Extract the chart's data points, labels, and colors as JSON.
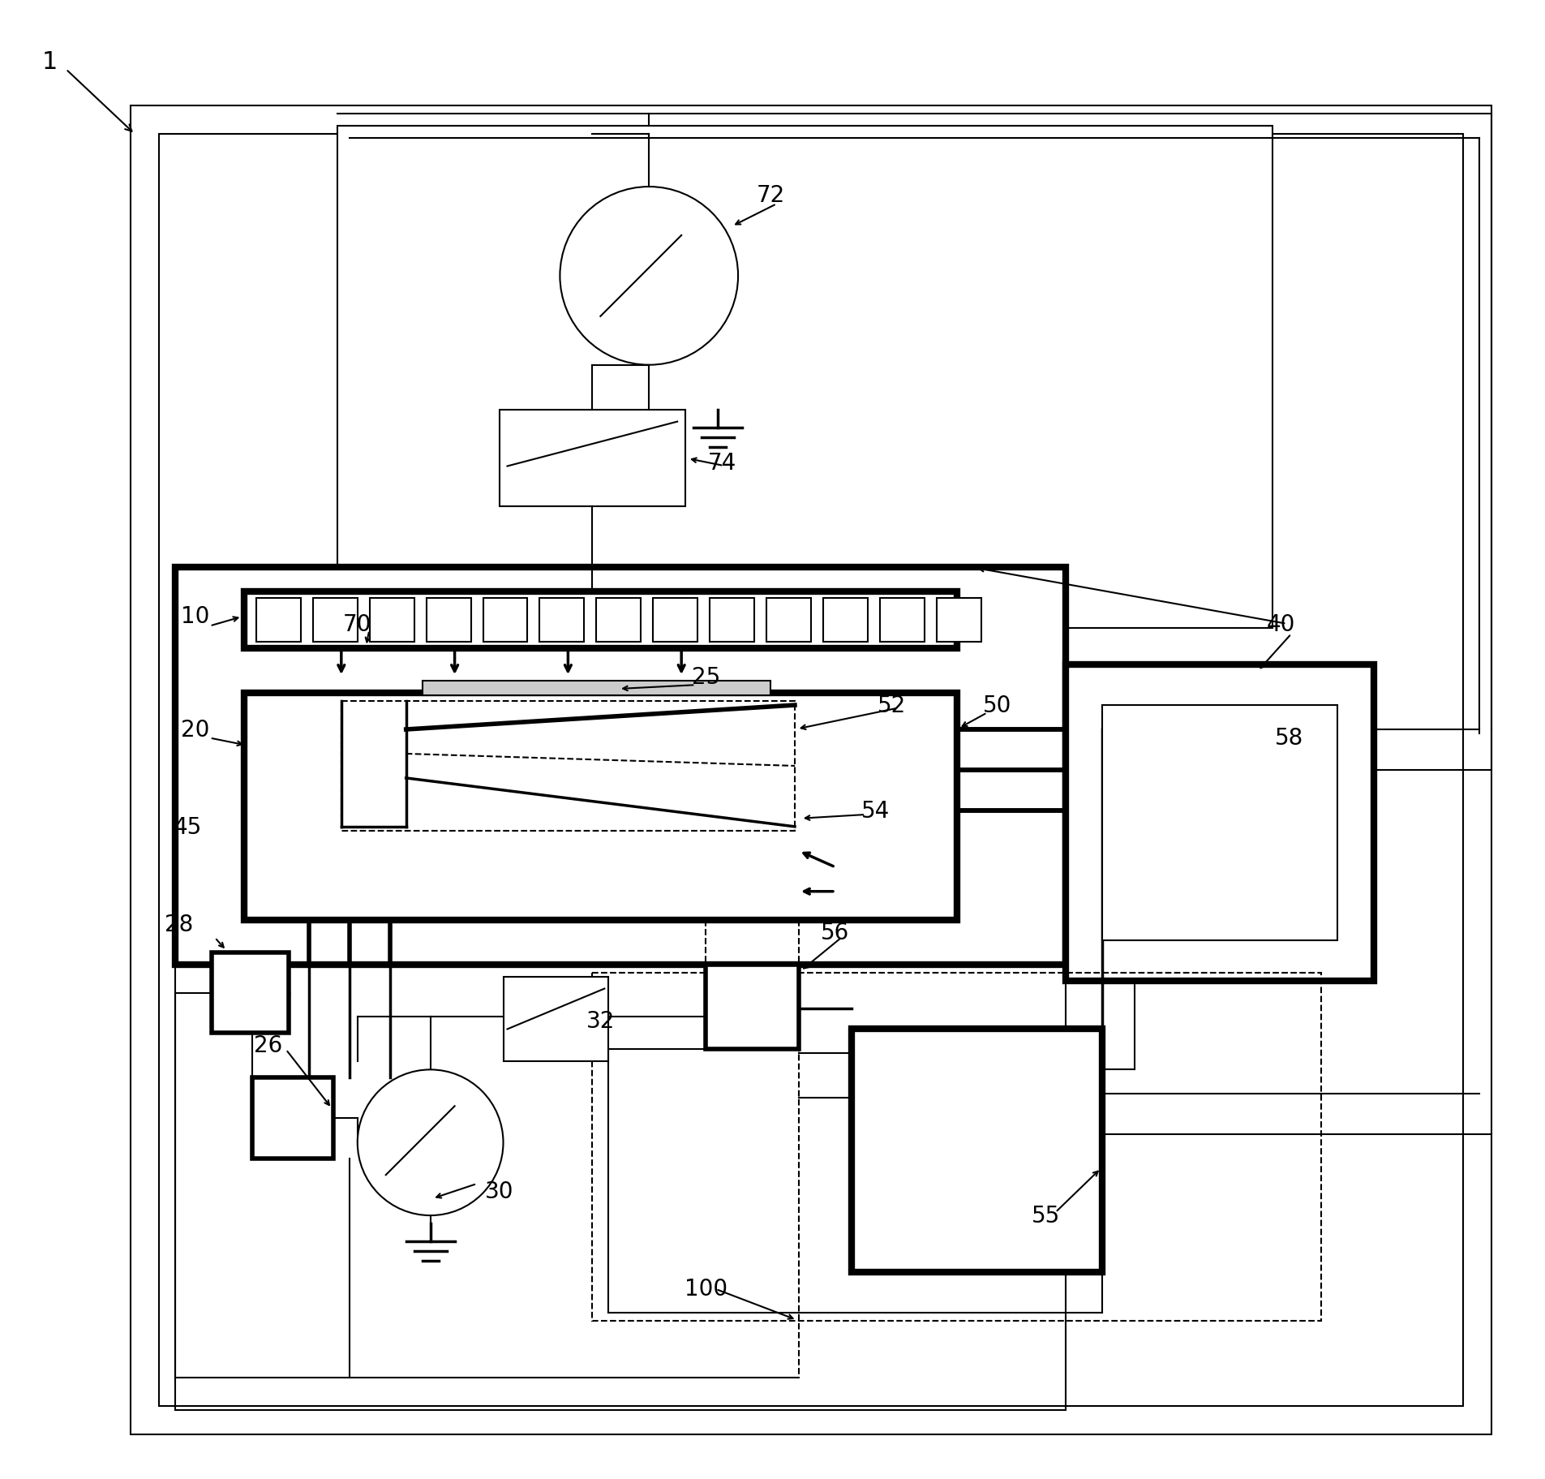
{
  "bg_color": "#ffffff",
  "line_color": "#000000",
  "fig_width": 19.06,
  "fig_height": 18.24,
  "lw_thin": 1.5,
  "lw_med": 2.5,
  "lw_thick": 4.0,
  "lw_ultra": 6.0
}
